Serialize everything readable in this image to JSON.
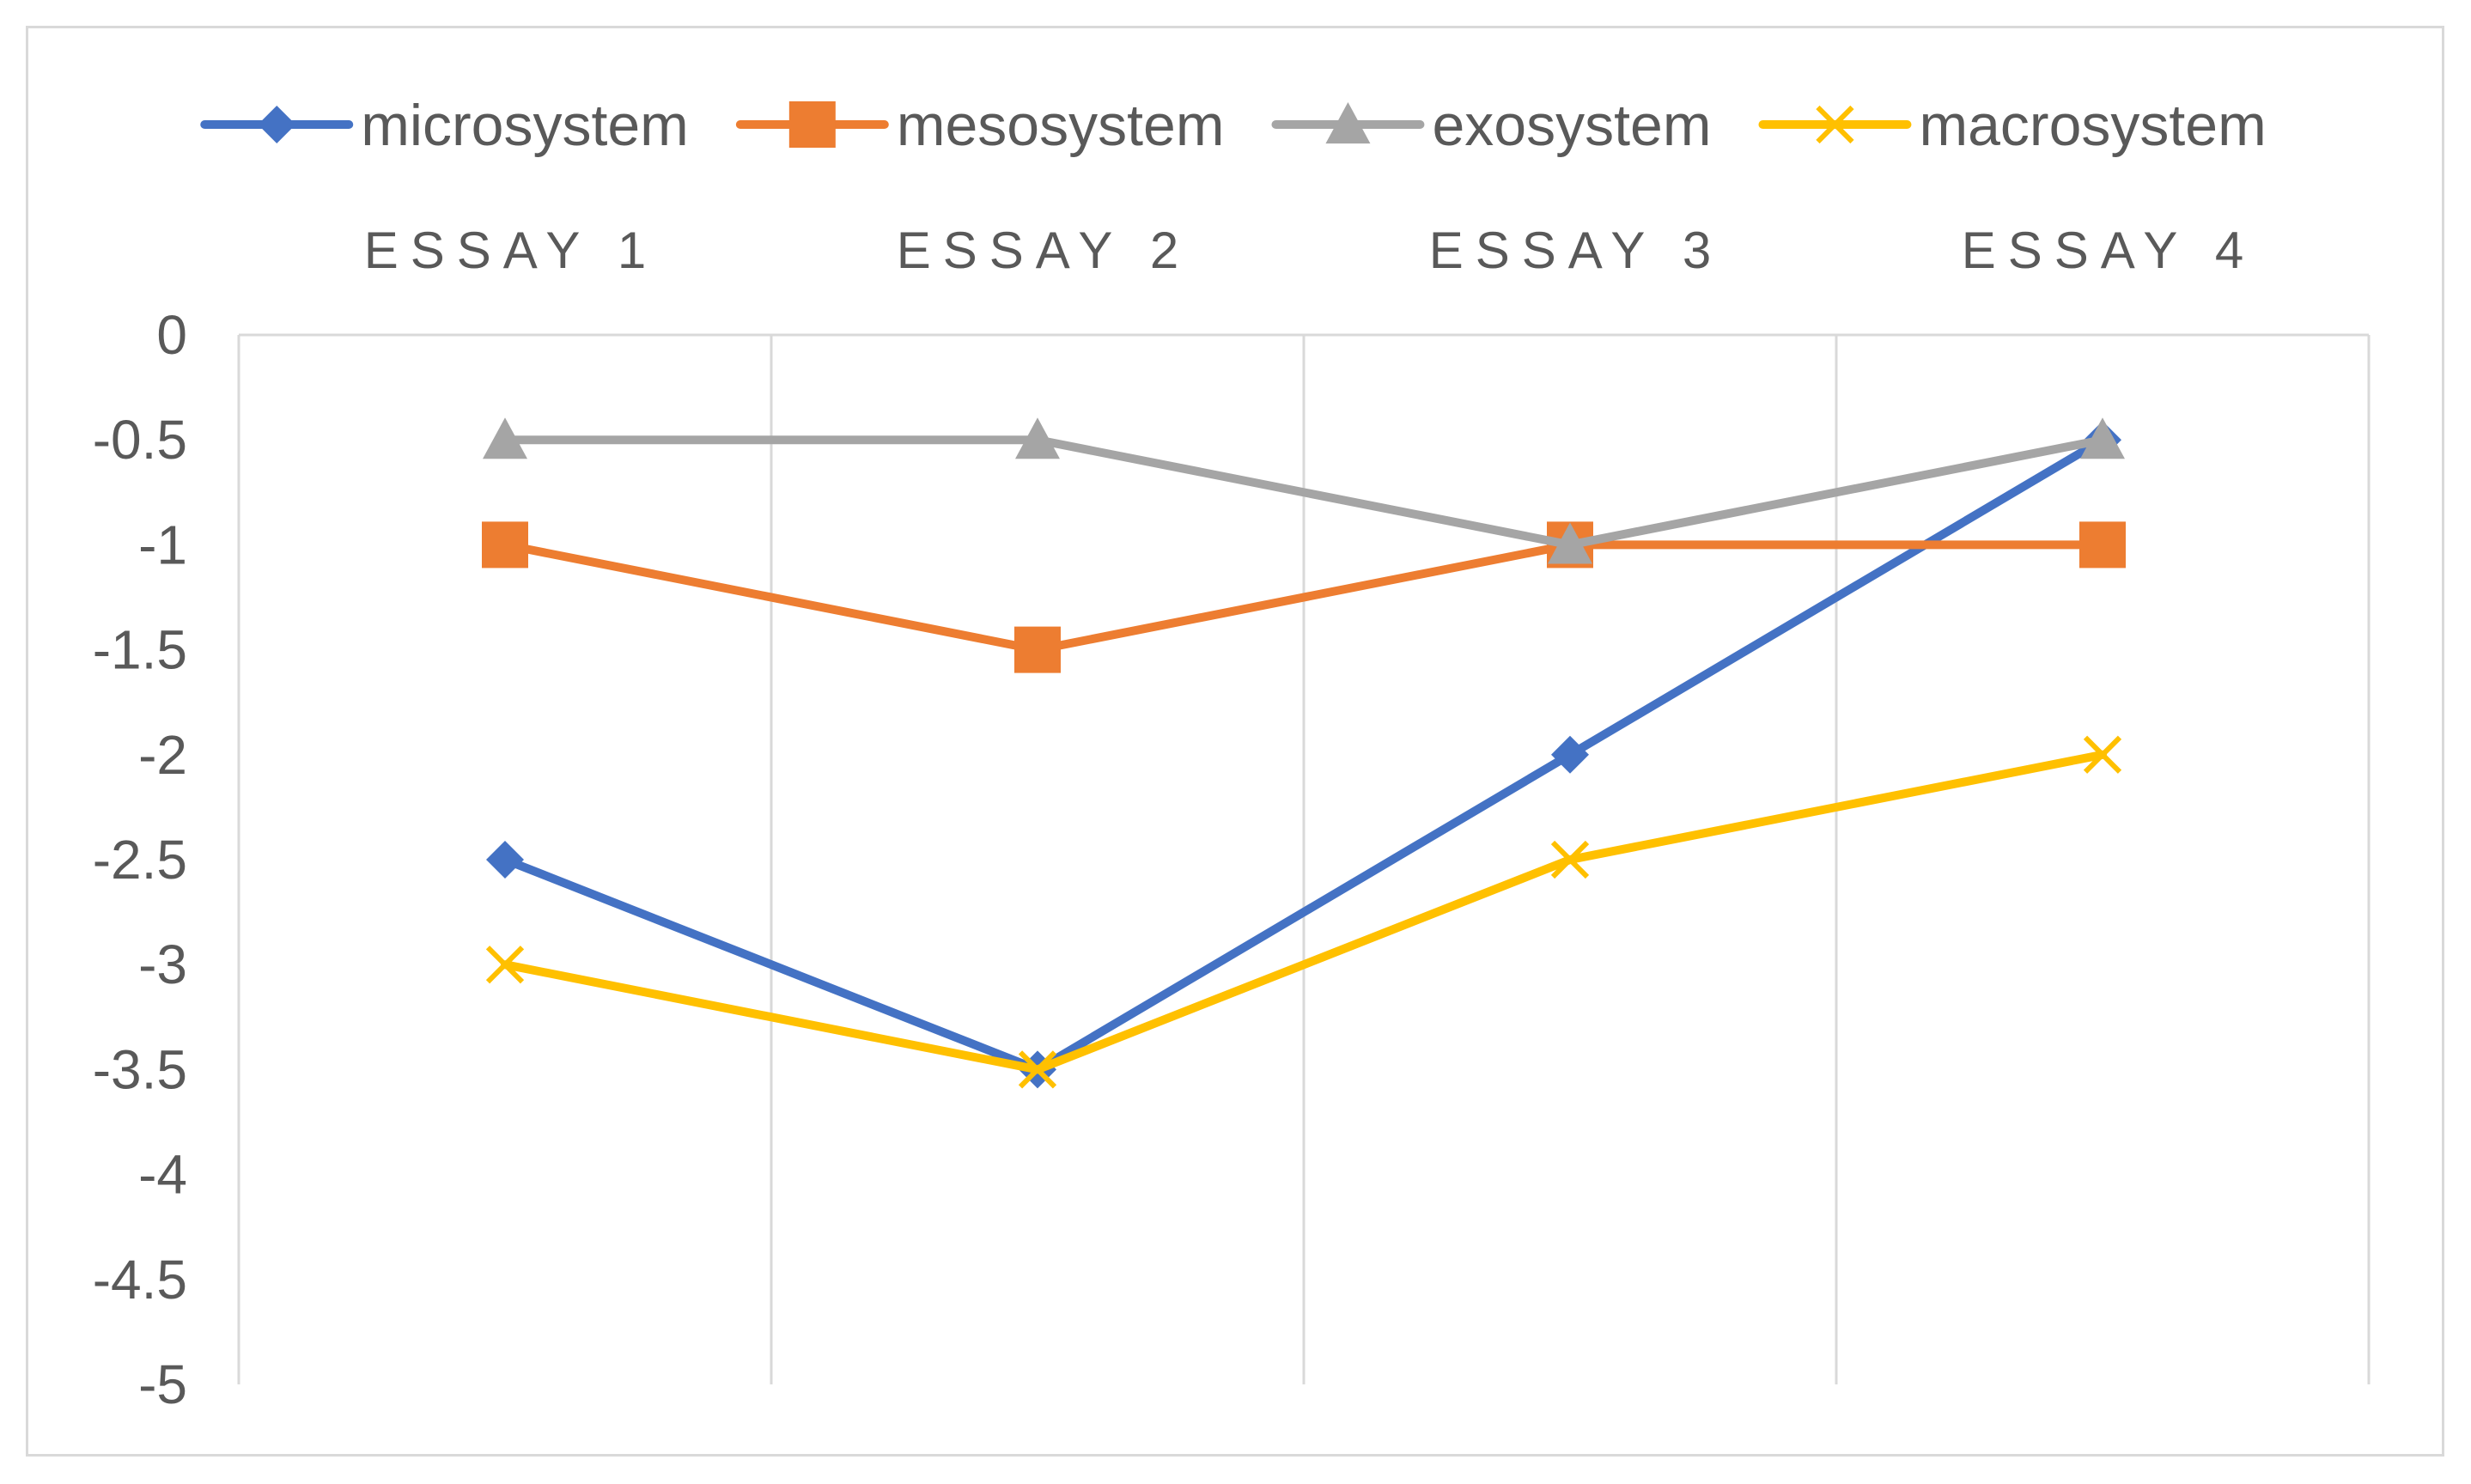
{
  "chart_data": {
    "type": "line",
    "categories": [
      "ESSAY 1",
      "ESSAY 2",
      "ESSAY 3",
      "ESSAY 4"
    ],
    "series": [
      {
        "name": "microsystem",
        "values": [
          -2.5,
          -3.5,
          -2,
          -0.5
        ],
        "color": "#4472c4",
        "marker": "diamond"
      },
      {
        "name": "mesosystem",
        "values": [
          -1,
          -1.5,
          -1,
          -1
        ],
        "color": "#ed7d31",
        "marker": "square"
      },
      {
        "name": "exosystem",
        "values": [
          -0.5,
          -0.5,
          -1,
          -0.5
        ],
        "color": "#a5a5a5",
        "marker": "triangle"
      },
      {
        "name": "macrosystem",
        "values": [
          -3,
          -3.5,
          -2.5,
          -2
        ],
        "color": "#ffc000",
        "marker": "x"
      }
    ],
    "y_ticks": [
      "0",
      "-0.5",
      "-1",
      "-1.5",
      "-2",
      "-2.5",
      "-3",
      "-3.5",
      "-4",
      "-4.5",
      "-5"
    ],
    "ylim": [
      -5,
      0
    ],
    "x_axis_position": "top",
    "legend_position": "top",
    "grid": "vertical",
    "title": "",
    "xlabel": "",
    "ylabel": ""
  }
}
